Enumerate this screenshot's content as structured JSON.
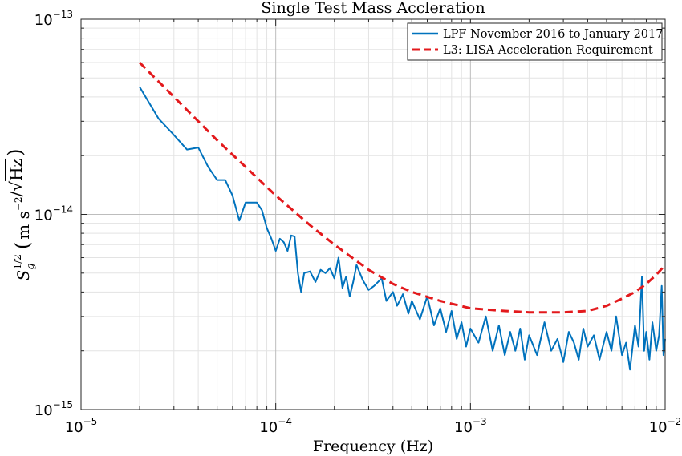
{
  "chart_data": {
    "type": "line",
    "title": "Single Test Mass Accleration",
    "xlabel": "Frequency (Hz)",
    "ylabel": "S_g^{1/2} (m s^-2/√Hz)",
    "ylabel_parts": {
      "sym": "S",
      "sub": "g",
      "sup": "1/2",
      "unit_m": "m s",
      "unit_exp": "−2",
      "unit_div": "/",
      "sqrt": "√",
      "hz": "Hz"
    },
    "xscale": "log",
    "yscale": "log",
    "xlim": [
      1e-05,
      0.01
    ],
    "ylim": [
      1e-15,
      1e-13
    ],
    "grid": true,
    "legend_position": "top-right",
    "x_ticks": [
      {
        "value": 1e-05,
        "base": "10",
        "exp": "−5"
      },
      {
        "value": 0.0001,
        "base": "10",
        "exp": "−4"
      },
      {
        "value": 0.001,
        "base": "10",
        "exp": "−3"
      },
      {
        "value": 0.01,
        "base": "10",
        "exp": "−2"
      }
    ],
    "y_ticks": [
      {
        "value": 1e-15,
        "base": "10",
        "exp": "−15"
      },
      {
        "value": 1e-14,
        "base": "10",
        "exp": "−14"
      },
      {
        "value": 1e-13,
        "base": "10",
        "exp": "−13"
      }
    ],
    "series": [
      {
        "name": "LPF November 2016 to January 2017",
        "color": "#0072bd",
        "style": "solid",
        "points": [
          [
            2e-05,
            4.5e-14
          ],
          [
            2.5e-05,
            3.1e-14
          ],
          [
            2.95e-05,
            2.6e-14
          ],
          [
            3.5e-05,
            2.15e-14
          ],
          [
            4e-05,
            2.2e-14
          ],
          [
            4.5e-05,
            1.75e-14
          ],
          [
            5e-05,
            1.5e-14
          ],
          [
            5.5e-05,
            1.5e-14
          ],
          [
            6e-05,
            1.25e-14
          ],
          [
            6.5e-05,
            9.3e-15
          ],
          [
            7e-05,
            1.15e-14
          ],
          [
            7.5e-05,
            1.15e-14
          ],
          [
            8e-05,
            1.15e-14
          ],
          [
            8.5e-05,
            1.05e-14
          ],
          [
            9e-05,
            8.5e-15
          ],
          [
            9.5e-05,
            7.5e-15
          ],
          [
            0.0001,
            6.5e-15
          ],
          [
            0.000105,
            7.5e-15
          ],
          [
            0.00011,
            7.2e-15
          ],
          [
            0.000115,
            6.5e-15
          ],
          [
            0.00012,
            7.8e-15
          ],
          [
            0.000125,
            7.7e-15
          ],
          [
            0.00013,
            5e-15
          ],
          [
            0.000135,
            4e-15
          ],
          [
            0.00014,
            5e-15
          ],
          [
            0.00015,
            5.1e-15
          ],
          [
            0.00016,
            4.5e-15
          ],
          [
            0.00017,
            5.2e-15
          ],
          [
            0.00018,
            5e-15
          ],
          [
            0.00019,
            5.3e-15
          ],
          [
            0.0002,
            4.7e-15
          ],
          [
            0.00021,
            6e-15
          ],
          [
            0.00022,
            4.2e-15
          ],
          [
            0.00023,
            4.8e-15
          ],
          [
            0.00024,
            3.8e-15
          ],
          [
            0.00025,
            4.5e-15
          ],
          [
            0.00026,
            5.5e-15
          ],
          [
            0.00028,
            4.6e-15
          ],
          [
            0.0003,
            4.1e-15
          ],
          [
            0.00032,
            4.3e-15
          ],
          [
            0.00035,
            4.7e-15
          ],
          [
            0.00037,
            3.6e-15
          ],
          [
            0.0004,
            4e-15
          ],
          [
            0.00042,
            3.4e-15
          ],
          [
            0.00045,
            3.9e-15
          ],
          [
            0.00048,
            3.1e-15
          ],
          [
            0.0005,
            3.6e-15
          ],
          [
            0.00055,
            2.9e-15
          ],
          [
            0.0006,
            3.8e-15
          ],
          [
            0.00065,
            2.7e-15
          ],
          [
            0.0007,
            3.3e-15
          ],
          [
            0.00075,
            2.5e-15
          ],
          [
            0.0008,
            3.2e-15
          ],
          [
            0.00085,
            2.3e-15
          ],
          [
            0.0009,
            2.8e-15
          ],
          [
            0.00095,
            2.1e-15
          ],
          [
            0.001,
            2.6e-15
          ],
          [
            0.0011,
            2.2e-15
          ],
          [
            0.0012,
            3e-15
          ],
          [
            0.0013,
            2e-15
          ],
          [
            0.0014,
            2.7e-15
          ],
          [
            0.0015,
            1.9e-15
          ],
          [
            0.0016,
            2.5e-15
          ],
          [
            0.0017,
            2e-15
          ],
          [
            0.0018,
            2.6e-15
          ],
          [
            0.0019,
            1.8e-15
          ],
          [
            0.002,
            2.4e-15
          ],
          [
            0.0022,
            1.9e-15
          ],
          [
            0.0024,
            2.8e-15
          ],
          [
            0.0026,
            2e-15
          ],
          [
            0.0028,
            2.3e-15
          ],
          [
            0.003,
            1.75e-15
          ],
          [
            0.0032,
            2.5e-15
          ],
          [
            0.0034,
            2.2e-15
          ],
          [
            0.0036,
            1.8e-15
          ],
          [
            0.0038,
            2.6e-15
          ],
          [
            0.004,
            2.1e-15
          ],
          [
            0.0043,
            2.4e-15
          ],
          [
            0.0046,
            1.8e-15
          ],
          [
            0.005,
            2.5e-15
          ],
          [
            0.0053,
            2e-15
          ],
          [
            0.0056,
            3e-15
          ],
          [
            0.006,
            1.9e-15
          ],
          [
            0.0063,
            2.2e-15
          ],
          [
            0.0066,
            1.6e-15
          ],
          [
            0.007,
            2.7e-15
          ],
          [
            0.0073,
            2.1e-15
          ],
          [
            0.0076,
            4.8e-15
          ],
          [
            0.0078,
            2e-15
          ],
          [
            0.008,
            2.5e-15
          ],
          [
            0.0083,
            1.8e-15
          ],
          [
            0.0086,
            2.8e-15
          ],
          [
            0.009,
            2e-15
          ],
          [
            0.0093,
            2.4e-15
          ],
          [
            0.0096,
            4.3e-15
          ],
          [
            0.0098,
            1.9e-15
          ],
          [
            0.01,
            2.3e-15
          ]
        ]
      },
      {
        "name": "L3: LISA Acceleration Requirement",
        "color": "#e3191c",
        "style": "dashed",
        "points": [
          [
            2e-05,
            6e-14
          ],
          [
            3e-05,
            4e-14
          ],
          [
            4e-05,
            3e-14
          ],
          [
            5e-05,
            2.4e-14
          ],
          [
            7e-05,
            1.75e-14
          ],
          [
            0.0001,
            1.25e-14
          ],
          [
            0.00015,
            8.8e-15
          ],
          [
            0.0002,
            7e-15
          ],
          [
            0.0003,
            5.2e-15
          ],
          [
            0.0004,
            4.4e-15
          ],
          [
            0.0005,
            4e-15
          ],
          [
            0.0007,
            3.6e-15
          ],
          [
            0.001,
            3.3e-15
          ],
          [
            0.0015,
            3.2e-15
          ],
          [
            0.002,
            3.15e-15
          ],
          [
            0.003,
            3.15e-15
          ],
          [
            0.004,
            3.2e-15
          ],
          [
            0.005,
            3.4e-15
          ],
          [
            0.006,
            3.7e-15
          ],
          [
            0.007,
            4e-15
          ],
          [
            0.008,
            4.4e-15
          ],
          [
            0.009,
            4.9e-15
          ],
          [
            0.01,
            5.5e-15
          ]
        ]
      }
    ]
  }
}
